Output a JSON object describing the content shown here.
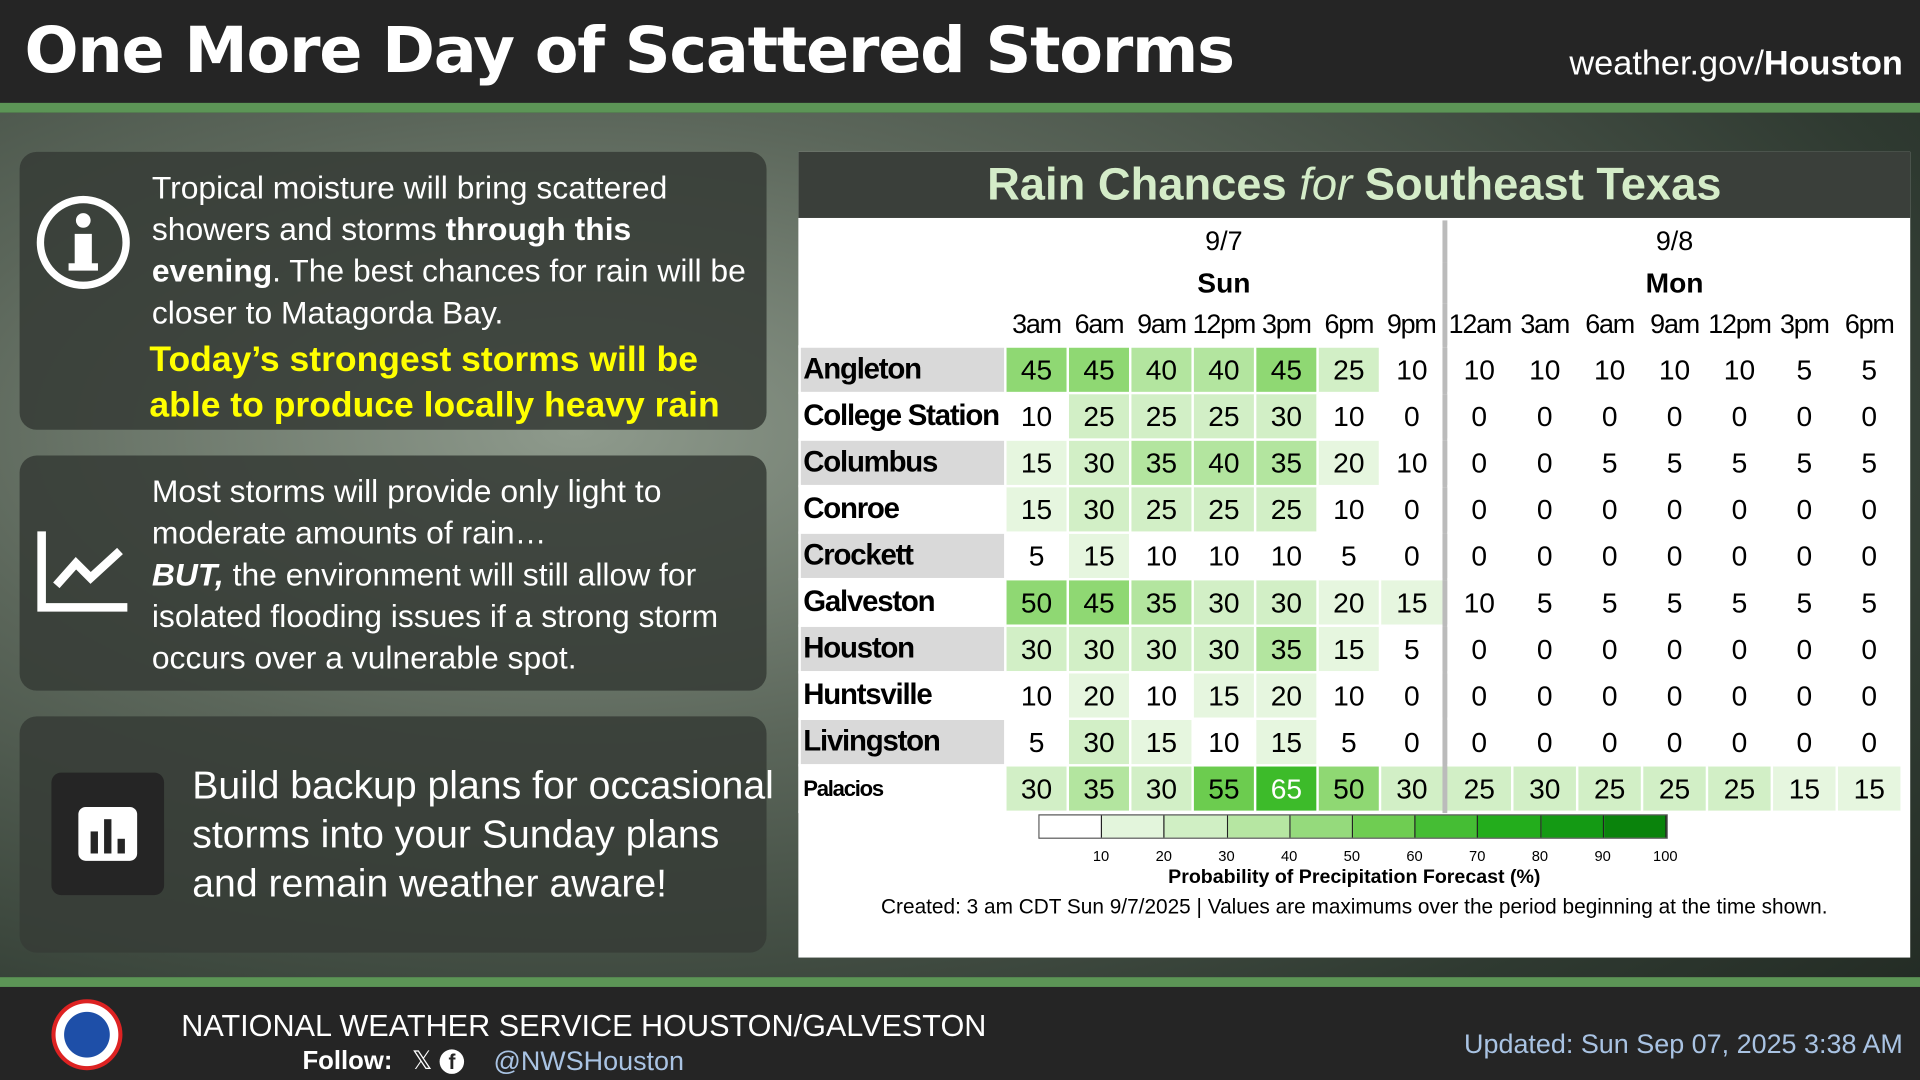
{
  "header": {
    "title": "One More Day of Scattered Storms",
    "site_prefix": "weather.gov/",
    "site_bold": "Houston"
  },
  "panels": [
    {
      "icon": "info-icon",
      "parts": [
        "Tropical moisture will bring scattered showers and storms ",
        "through this evening",
        ". The best chances for rain will be closer to Matagorda Bay."
      ],
      "highlight": "Today’s strongest storms will be able to produce locally heavy rain"
    },
    {
      "icon": "trend-chart-icon",
      "text1": "Most storms will provide only light to moderate amounts of rain…",
      "bold": "BUT,",
      "text2": " the environment will still allow for isolated flooding issues if a strong storm occurs over a vulnerable spot."
    },
    {
      "icon": "bar-chart-icon",
      "text": "Build backup plans for occasional storms into your Sunday plans and remain weather aware!"
    }
  ],
  "table": {
    "title_a": "Rain Chances ",
    "title_b": "for",
    "title_c": " Southeast Texas",
    "days": [
      {
        "date": "9/7",
        "day": "Sun"
      },
      {
        "date": "9/8",
        "day": "Mon"
      }
    ],
    "times": [
      "3am",
      "6am",
      "9am",
      "12pm",
      "3pm",
      "6pm",
      "9pm",
      "12am",
      "3am",
      "6am",
      "9am",
      "12pm",
      "3pm",
      "6pm"
    ],
    "rows": [
      {
        "city": "Angleton",
        "values": [
          45,
          45,
          40,
          40,
          45,
          25,
          10,
          10,
          10,
          10,
          10,
          10,
          5,
          5
        ]
      },
      {
        "city": "College Station",
        "values": [
          10,
          25,
          25,
          25,
          30,
          10,
          0,
          0,
          0,
          0,
          0,
          0,
          0,
          0
        ]
      },
      {
        "city": "Columbus",
        "values": [
          15,
          30,
          35,
          40,
          35,
          20,
          10,
          0,
          0,
          5,
          5,
          5,
          5,
          5
        ]
      },
      {
        "city": "Conroe",
        "values": [
          15,
          30,
          25,
          25,
          25,
          10,
          0,
          0,
          0,
          0,
          0,
          0,
          0,
          0
        ]
      },
      {
        "city": "Crockett",
        "values": [
          5,
          15,
          10,
          10,
          10,
          5,
          0,
          0,
          0,
          0,
          0,
          0,
          0,
          0
        ]
      },
      {
        "city": "Galveston",
        "values": [
          50,
          45,
          35,
          30,
          30,
          20,
          15,
          10,
          5,
          5,
          5,
          5,
          5,
          5
        ]
      },
      {
        "city": "Houston",
        "values": [
          30,
          30,
          30,
          30,
          35,
          15,
          5,
          0,
          0,
          0,
          0,
          0,
          0,
          0
        ]
      },
      {
        "city": "Huntsville",
        "values": [
          10,
          20,
          10,
          15,
          20,
          10,
          0,
          0,
          0,
          0,
          0,
          0,
          0,
          0
        ]
      },
      {
        "city": "Livingston",
        "values": [
          5,
          30,
          15,
          10,
          15,
          5,
          0,
          0,
          0,
          0,
          0,
          0,
          0,
          0
        ]
      },
      {
        "city": "Palacios",
        "values": [
          30,
          35,
          30,
          55,
          65,
          50,
          30,
          25,
          30,
          25,
          25,
          25,
          15,
          15
        ]
      }
    ],
    "legend_ticks": [
      "10",
      "20",
      "30",
      "40",
      "50",
      "60",
      "70",
      "80",
      "90",
      "100"
    ],
    "legend_colors": [
      "#ffffff",
      "#e3f5dc",
      "#d0efc4",
      "#b6e6a2",
      "#95da7c",
      "#6fcd52",
      "#45bd34",
      "#23ad1c",
      "#149a14",
      "#0a830c"
    ],
    "legend_title": "Probability of Precipitation Forecast (%)",
    "note": "Created: 3 am CDT Sun 9/7/2025  |  Values are maximums over the period beginning at the time shown."
  },
  "footer": {
    "office": "NATIONAL WEATHER SERVICE HOUSTON/GALVESTON",
    "follow": "Follow:",
    "handle": "@NWSHouston",
    "updated": "Updated: Sun Sep 07, 2025 3:38 AM"
  }
}
